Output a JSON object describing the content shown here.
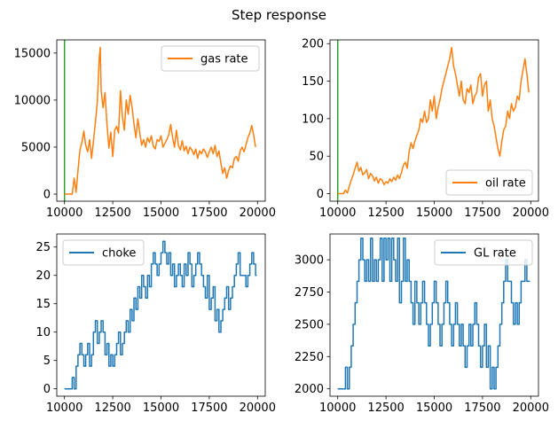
{
  "figure": {
    "title": "Step response"
  },
  "colors": {
    "orange": "#ff7f0e",
    "blue": "#1f77b4",
    "green": "#2ca02c",
    "axis": "#000000"
  },
  "chart_data": [
    {
      "type": "line",
      "position": "top-left",
      "title": "",
      "xlabel": "",
      "ylabel": "",
      "xlim": [
        9600,
        20400
      ],
      "ylim": [
        -750,
        16400
      ],
      "xticks": [
        10000,
        12500,
        15000,
        17500,
        20000
      ],
      "xtick_labels": [
        "10000",
        "12500",
        "15000",
        "17500",
        "20000"
      ],
      "yticks": [
        0,
        5000,
        10000,
        15000
      ],
      "ytick_labels": [
        "0",
        "5000",
        "10000",
        "15000"
      ],
      "legend": {
        "location": "upper right",
        "entries": [
          "gas rate"
        ]
      },
      "series": [
        {
          "name": "gas rate",
          "color": "#ff7f0e",
          "style": "line",
          "x": [
            10000,
            10400,
            10500,
            10600,
            10700,
            10800,
            10900,
            11000,
            11100,
            11200,
            11300,
            11400,
            11500,
            11600,
            11700,
            11800,
            11850,
            11900,
            12000,
            12100,
            12200,
            12300,
            12400,
            12500,
            12600,
            12700,
            12800,
            12900,
            13000,
            13100,
            13200,
            13300,
            13400,
            13500,
            13600,
            13700,
            13800,
            13900,
            14000,
            14100,
            14200,
            14300,
            14400,
            14500,
            14600,
            14700,
            14800,
            14900,
            15000,
            15100,
            15200,
            15300,
            15400,
            15500,
            15600,
            15700,
            15800,
            15900,
            16000,
            16100,
            16200,
            16300,
            16400,
            16500,
            16600,
            16700,
            16800,
            16900,
            17000,
            17100,
            17200,
            17300,
            17400,
            17500,
            17600,
            17700,
            17800,
            17900,
            18000,
            18100,
            18200,
            18300,
            18400,
            18500,
            18600,
            18700,
            18800,
            18900,
            19000,
            19100,
            19200,
            19300,
            19400,
            19500,
            19600,
            19700,
            19800,
            19900
          ],
          "y": [
            0,
            0,
            1700,
            200,
            2500,
            4700,
            5500,
            6700,
            5200,
            4500,
            5800,
            3800,
            5600,
            7600,
            9800,
            14500,
            15600,
            11000,
            9200,
            10800,
            7400,
            4900,
            6600,
            4000,
            6800,
            7200,
            6500,
            11000,
            8200,
            6800,
            10000,
            8500,
            10500,
            9200,
            7500,
            6000,
            8000,
            6500,
            5200,
            5800,
            5000,
            6000,
            5500,
            6200,
            5100,
            4800,
            5800,
            5600,
            6200,
            5000,
            5400,
            5800,
            6300,
            7400,
            6000,
            5000,
            6800,
            5200,
            4700,
            5700,
            4600,
            5100,
            4300,
            5000,
            4700,
            4200,
            4800,
            3800,
            4600,
            4300,
            4800,
            4500,
            3900,
            4500,
            5000,
            4300,
            5200,
            4000,
            4600,
            3300,
            2200,
            2800,
            1700,
            2500,
            3000,
            2800,
            3800,
            4000,
            3500,
            4600,
            5000,
            4500,
            5200,
            6000,
            6500,
            7300,
            6300,
            5000
          ]
        }
      ],
      "vlines": [
        {
          "x": 10000,
          "color": "#2ca02c"
        }
      ]
    },
    {
      "type": "line",
      "position": "top-right",
      "title": "",
      "xlabel": "",
      "ylabel": "",
      "xlim": [
        9600,
        20400
      ],
      "ylim": [
        -10,
        205
      ],
      "xticks": [
        10000,
        12500,
        15000,
        17500,
        20000
      ],
      "xtick_labels": [
        "10000",
        "12500",
        "15000",
        "17500",
        "20000"
      ],
      "yticks": [
        0,
        50,
        100,
        150,
        200
      ],
      "ytick_labels": [
        "0",
        "50",
        "100",
        "150",
        "200"
      ],
      "legend": {
        "location": "lower right",
        "entries": [
          "oil rate"
        ]
      },
      "series": [
        {
          "name": "oil rate",
          "color": "#ff7f0e",
          "style": "line",
          "x": [
            10000,
            10300,
            10400,
            10500,
            10600,
            10700,
            10800,
            10900,
            11000,
            11100,
            11200,
            11300,
            11400,
            11500,
            11600,
            11700,
            11800,
            11900,
            12000,
            12100,
            12200,
            12300,
            12400,
            12500,
            12600,
            12700,
            12800,
            12900,
            13000,
            13100,
            13200,
            13300,
            13400,
            13500,
            13600,
            13700,
            13800,
            13900,
            14000,
            14100,
            14200,
            14300,
            14400,
            14500,
            14600,
            14700,
            14800,
            14900,
            15000,
            15100,
            15200,
            15300,
            15400,
            15500,
            15600,
            15700,
            15800,
            15900,
            16000,
            16100,
            16200,
            16300,
            16400,
            16500,
            16600,
            16700,
            16800,
            16900,
            17000,
            17100,
            17200,
            17300,
            17400,
            17500,
            17600,
            17700,
            17800,
            17900,
            18000,
            18100,
            18200,
            18300,
            18400,
            18500,
            18600,
            18700,
            18800,
            18900,
            19000,
            19100,
            19200,
            19300,
            19400,
            19500,
            19600,
            19700,
            19800,
            19900
          ],
          "y": [
            0,
            0,
            5,
            1,
            10,
            18,
            25,
            34,
            42,
            30,
            35,
            25,
            28,
            32,
            20,
            27,
            24,
            17,
            22,
            14,
            20,
            18,
            12,
            16,
            14,
            20,
            16,
            22,
            18,
            25,
            20,
            28,
            38,
            42,
            34,
            56,
            68,
            60,
            70,
            78,
            85,
            100,
            95,
            110,
            95,
            100,
            125,
            110,
            130,
            100,
            115,
            125,
            140,
            150,
            160,
            170,
            180,
            195,
            170,
            160,
            145,
            130,
            150,
            125,
            120,
            140,
            135,
            145,
            120,
            130,
            135,
            155,
            160,
            130,
            145,
            150,
            110,
            125,
            100,
            90,
            75,
            60,
            50,
            70,
            85,
            90,
            110,
            100,
            120,
            110,
            115,
            130,
            125,
            150,
            165,
            180,
            160,
            135
          ]
        }
      ],
      "vlines": [
        {
          "x": 10000,
          "color": "#2ca02c"
        }
      ]
    },
    {
      "type": "line",
      "position": "bottom-left",
      "title": "",
      "xlabel": "",
      "ylabel": "",
      "xlim": [
        9600,
        20400
      ],
      "ylim": [
        -1.3,
        27.3
      ],
      "xticks": [
        10000,
        12500,
        15000,
        17500,
        20000
      ],
      "xtick_labels": [
        "10000",
        "12500",
        "15000",
        "17500",
        "20000"
      ],
      "yticks": [
        0,
        5,
        10,
        15,
        20,
        25
      ],
      "ytick_labels": [
        "0",
        "5",
        "10",
        "15",
        "20",
        "25"
      ],
      "legend": {
        "location": "upper left",
        "entries": [
          "choke"
        ]
      },
      "series": [
        {
          "name": "choke",
          "color": "#1f77b4",
          "style": "step",
          "x": [
            10000,
            10300,
            10400,
            10500,
            10600,
            10700,
            10800,
            10900,
            11000,
            11100,
            11200,
            11300,
            11400,
            11500,
            11600,
            11700,
            11800,
            11900,
            12000,
            12100,
            12200,
            12300,
            12400,
            12500,
            12600,
            12700,
            12800,
            12900,
            13000,
            13100,
            13200,
            13300,
            13400,
            13500,
            13600,
            13700,
            13800,
            13900,
            14000,
            14100,
            14200,
            14300,
            14400,
            14500,
            14600,
            14700,
            14800,
            14900,
            15000,
            15100,
            15200,
            15300,
            15400,
            15500,
            15600,
            15700,
            15800,
            15900,
            16000,
            16100,
            16200,
            16300,
            16400,
            16500,
            16600,
            16700,
            16800,
            16900,
            17000,
            17100,
            17200,
            17300,
            17400,
            17500,
            17600,
            17700,
            17800,
            17900,
            18000,
            18100,
            18200,
            18300,
            18400,
            18500,
            18600,
            18700,
            18800,
            18900,
            19000,
            19100,
            19200,
            19300,
            19400,
            19500,
            19600,
            19700,
            19800,
            19900
          ],
          "y": [
            0,
            0,
            2,
            0,
            4,
            6,
            8,
            6,
            4,
            6,
            8,
            4,
            6,
            10,
            12,
            8,
            10,
            12,
            10,
            6,
            8,
            4,
            6,
            4,
            6,
            8,
            10,
            6,
            8,
            10,
            12,
            10,
            14,
            12,
            16,
            14,
            18,
            16,
            20,
            18,
            16,
            20,
            18,
            22,
            24,
            22,
            20,
            22,
            24,
            26,
            24,
            22,
            24,
            20,
            22,
            18,
            20,
            22,
            20,
            18,
            22,
            20,
            24,
            22,
            18,
            20,
            22,
            24,
            22,
            20,
            18,
            16,
            20,
            14,
            16,
            18,
            12,
            14,
            10,
            12,
            14,
            16,
            18,
            14,
            16,
            18,
            20,
            22,
            24,
            20,
            20,
            20,
            18,
            20,
            22,
            24,
            22,
            20
          ]
        }
      ],
      "vlines": []
    },
    {
      "type": "line",
      "position": "bottom-right",
      "title": "",
      "xlabel": "",
      "ylabel": "",
      "xlim": [
        9600,
        20400
      ],
      "ylim": [
        1943,
        3200
      ],
      "xticks": [
        10000,
        12500,
        15000,
        17500,
        20000
      ],
      "xtick_labels": [
        "10000",
        "12500",
        "15000",
        "17500",
        "20000"
      ],
      "yticks": [
        2000,
        2250,
        2500,
        2750,
        3000
      ],
      "ytick_labels": [
        "2000",
        "2250",
        "2500",
        "2750",
        "3000"
      ],
      "legend": {
        "location": "upper right",
        "entries": [
          "GL rate"
        ]
      },
      "series": [
        {
          "name": "GL rate",
          "color": "#1f77b4",
          "style": "step",
          "x": [
            10000,
            10300,
            10400,
            10500,
            10600,
            10700,
            10800,
            10900,
            11000,
            11100,
            11200,
            11300,
            11400,
            11500,
            11600,
            11700,
            11800,
            11900,
            12000,
            12100,
            12200,
            12300,
            12400,
            12500,
            12600,
            12700,
            12800,
            12900,
            13000,
            13100,
            13200,
            13300,
            13400,
            13500,
            13600,
            13700,
            13800,
            13900,
            14000,
            14100,
            14200,
            14300,
            14400,
            14500,
            14600,
            14700,
            14800,
            14900,
            15000,
            15100,
            15200,
            15300,
            15400,
            15500,
            15600,
            15700,
            15800,
            15900,
            16000,
            16100,
            16200,
            16300,
            16400,
            16500,
            16600,
            16700,
            16800,
            16900,
            17000,
            17100,
            17200,
            17300,
            17400,
            17500,
            17600,
            17700,
            17800,
            17900,
            18000,
            18100,
            18200,
            18300,
            18400,
            18500,
            18600,
            18700,
            18800,
            18900,
            19000,
            19100,
            19200,
            19300,
            19400,
            19500,
            19600,
            19700,
            19800,
            19900
          ],
          "y": [
            2000,
            2000,
            2167,
            2000,
            2167,
            2333,
            2500,
            2667,
            2833,
            3000,
            3167,
            3000,
            2833,
            3000,
            2833,
            3167,
            2833,
            3000,
            2833,
            3000,
            3167,
            2833,
            3167,
            3000,
            3167,
            2833,
            3167,
            3000,
            2833,
            3167,
            2667,
            2833,
            3167,
            2833,
            3000,
            2833,
            2667,
            2500,
            2833,
            2667,
            2500,
            2667,
            2833,
            2667,
            2500,
            2333,
            2500,
            2667,
            2833,
            2667,
            2500,
            2333,
            2500,
            2667,
            2833,
            2667,
            2500,
            2333,
            2500,
            2667,
            2500,
            2333,
            2500,
            2333,
            2167,
            2333,
            2500,
            2333,
            2500,
            2667,
            2500,
            2333,
            2167,
            2333,
            2500,
            2167,
            2333,
            2000,
            2167,
            2000,
            2167,
            2333,
            2500,
            2667,
            2833,
            3000,
            2833,
            2833,
            2667,
            2500,
            2667,
            2500,
            2667,
            2833,
            2833,
            3000,
            2833,
            2833
          ]
        }
      ],
      "vlines": []
    }
  ]
}
